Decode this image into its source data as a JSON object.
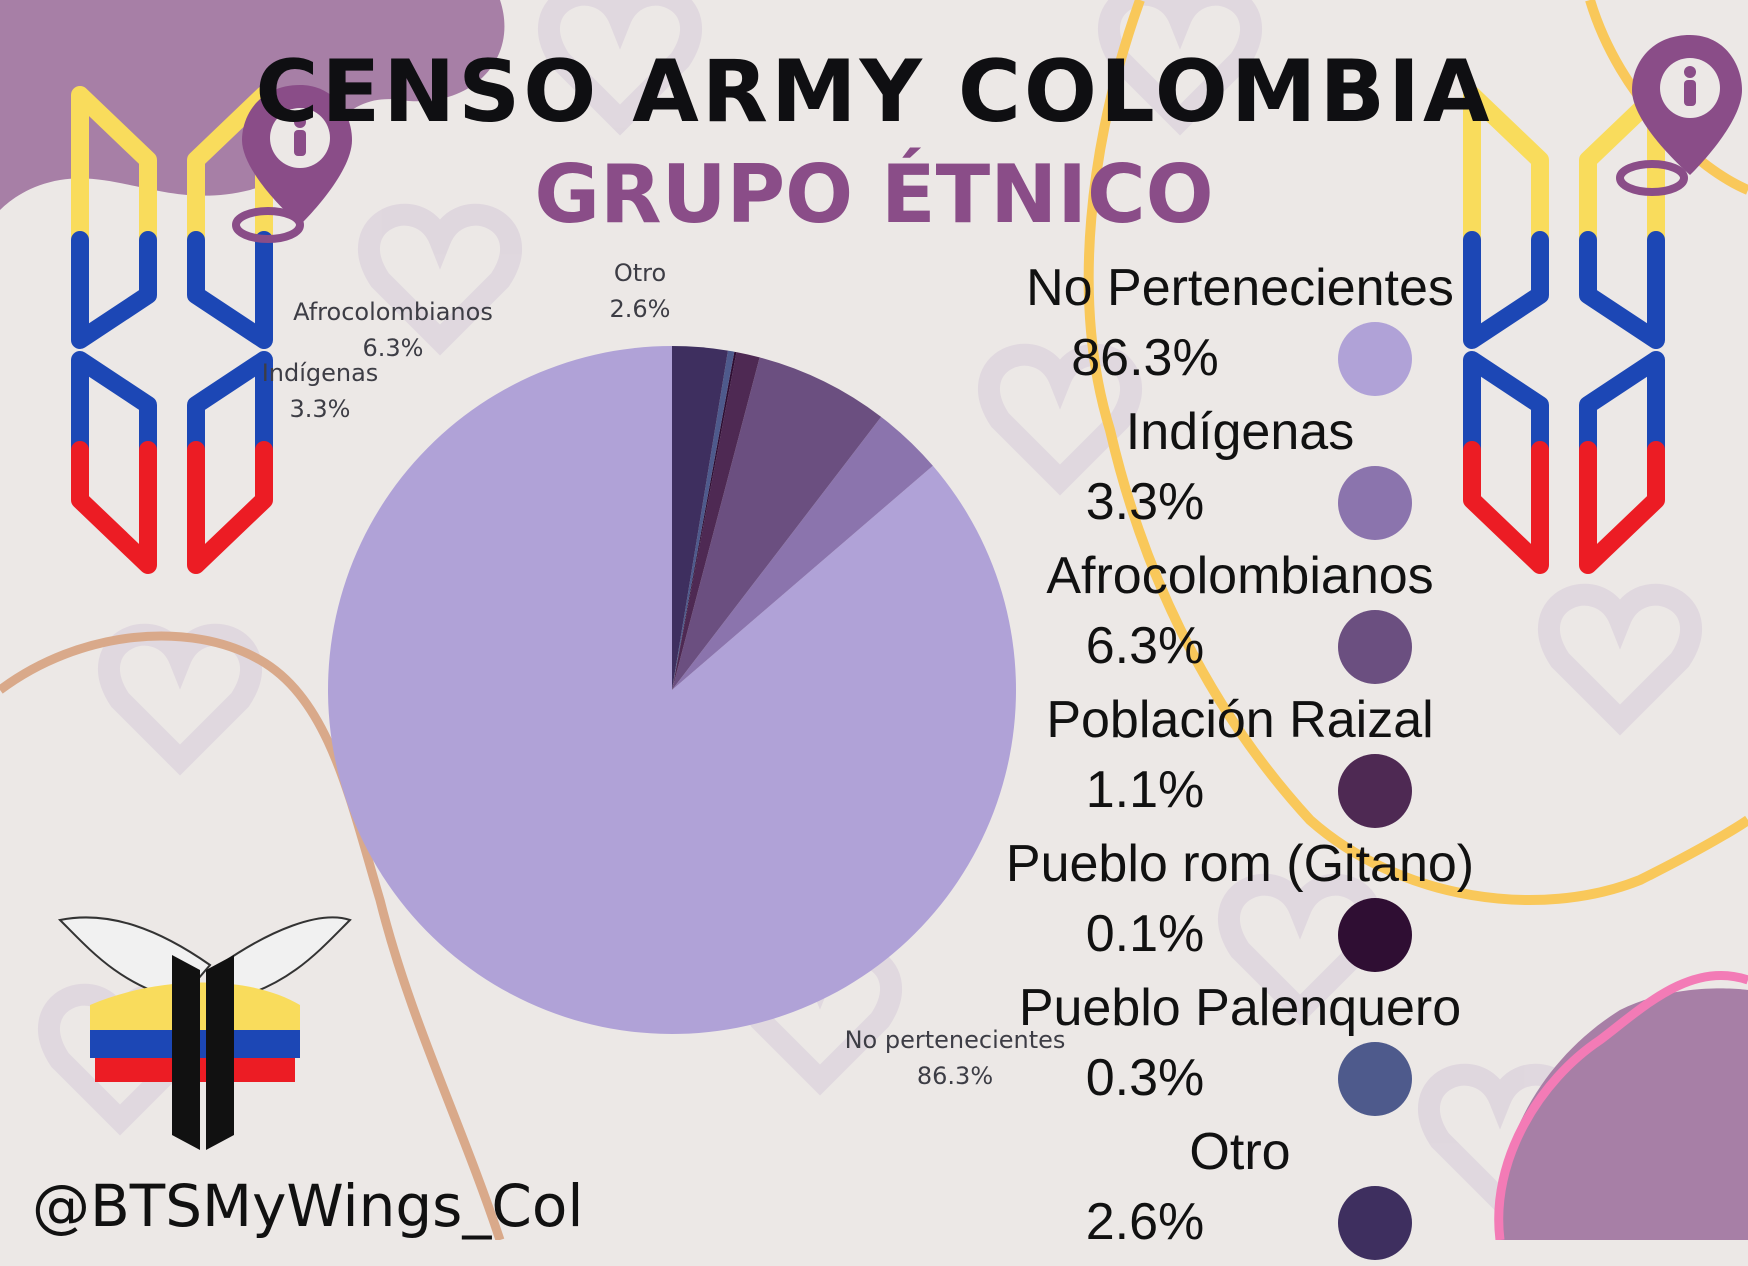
{
  "header": {
    "title": "CENSO ARMY COLOMBIA",
    "subtitle": "GRUPO ÉTNICO"
  },
  "footer": {
    "handle": "@BTSMyWings_Col"
  },
  "colors": {
    "background": "#ece8e6",
    "title": "#0f0f12",
    "subtitle": "#8a4d88",
    "accent_yellow": "#f9c85a",
    "accent_pink": "#f37bb6",
    "blob_purple": "#a77fa6",
    "flag_yellow": "#f9dc5c",
    "flag_blue": "#1c47b5",
    "flag_red": "#ec1c24"
  },
  "icons": [
    "location-pin-icon",
    "bts-logo-icon",
    "wings-logo-icon"
  ],
  "chart_data": {
    "type": "pie",
    "title": "GRUPO ÉTNICO",
    "legend_position": "right",
    "slices": [
      {
        "label": "No Pertenecientes",
        "value": 86.3,
        "value_label": "86.3%",
        "chart_label": "No pertenecientes",
        "color": "#b0a2d7"
      },
      {
        "label": "Indígenas",
        "value": 3.3,
        "value_label": "3.3%",
        "chart_label": "Indígenas",
        "color": "#8b74ad"
      },
      {
        "label": "Afrocolombianos",
        "value": 6.3,
        "value_label": "6.3%",
        "chart_label": "Afrocolombianos",
        "color": "#6b4f80"
      },
      {
        "label": "Población Raizal",
        "value": 1.1,
        "value_label": "1.1%",
        "chart_label": "",
        "color": "#4e2953"
      },
      {
        "label": "Pueblo rom (Gitano)",
        "value": 0.1,
        "value_label": "0.1%",
        "chart_label": "",
        "color": "#2f0e33"
      },
      {
        "label": "Pueblo Palenquero",
        "value": 0.3,
        "value_label": "0.3%",
        "chart_label": "",
        "color": "#4e5a8c"
      },
      {
        "label": "Otro",
        "value": 2.6,
        "value_label": "2.6%",
        "chart_label": "Otro",
        "color": "#3e2f5f"
      }
    ]
  }
}
